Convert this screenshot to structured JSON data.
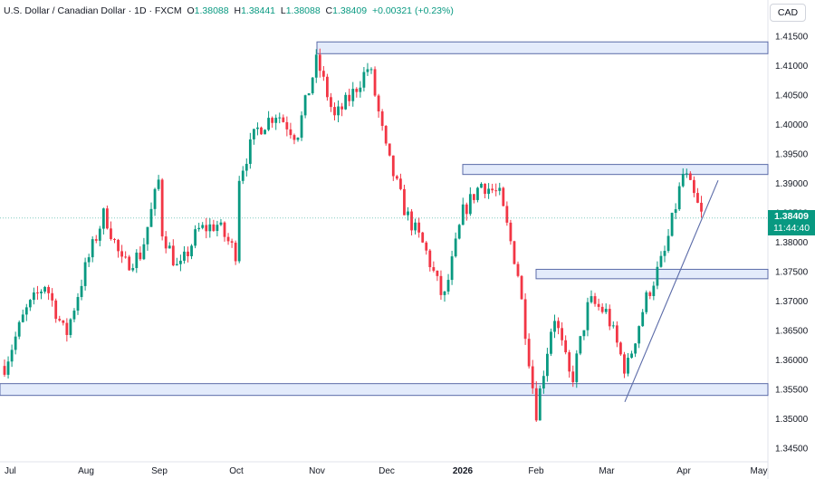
{
  "header": {
    "symbol": "U.S. Dollar / Canadian Dollar · 1D · FXCM",
    "open_label": "O",
    "open": "1.38088",
    "high_label": "H",
    "high": "1.38441",
    "low_label": "L",
    "low": "1.38088",
    "close_label": "C",
    "close": "1.38409",
    "change": "+0.00321 (+0.23%)"
  },
  "currency": "CAD",
  "price_tag": {
    "price": "1.38409",
    "countdown": "11:44:40"
  },
  "colors": {
    "up": "#089981",
    "down": "#f23645",
    "zone_fill": "#e3ebfb",
    "zone_border": "#5b6ba8",
    "trendline": "#5b6ba8"
  },
  "chart_data": {
    "type": "candlestick",
    "y_ticks": [
      "1.41500",
      "1.41000",
      "1.40500",
      "1.40000",
      "1.39500",
      "1.39000",
      "1.38500",
      "1.38000",
      "1.37500",
      "1.37000",
      "1.36500",
      "1.36000",
      "1.35500",
      "1.35000",
      "1.34500"
    ],
    "x_ticks": [
      "Jul",
      "Aug",
      "Sep",
      "Oct",
      "Nov",
      "Dec",
      "2026",
      "Feb",
      "Mar",
      "Apr",
      "May"
    ],
    "ylim": [
      1.3435,
      1.4165
    ],
    "current_price": 1.38409,
    "zones": [
      {
        "from": "Nov",
        "to": "right-edge",
        "low": 1.412,
        "high": 1.414
      },
      {
        "from": "2026",
        "to": "right-edge",
        "low": 1.3915,
        "high": 1.3932
      },
      {
        "from": "Feb",
        "to": "right-edge",
        "low": 1.3738,
        "high": 1.3754
      },
      {
        "from": "left-edge",
        "to": "right-edge",
        "low": 1.354,
        "high": 1.356
      }
    ],
    "trendline": [
      {
        "x": "Mar",
        "y": 1.3529
      },
      {
        "x": "Apr",
        "y": 1.3905
      }
    ],
    "waypoints": [
      [
        "Jul",
        1.359
      ],
      [
        "Jul+1w",
        1.368
      ],
      [
        "Jul+2w",
        1.373
      ],
      [
        "Jul+3w",
        1.364
      ],
      [
        "Aug",
        1.376
      ],
      [
        "Aug+1w",
        1.385
      ],
      [
        "Aug+2w",
        1.376
      ],
      [
        "Aug+3w",
        1.378
      ],
      [
        "Aug+4w",
        1.391
      ],
      [
        "Sep",
        1.383
      ],
      [
        "Sep+1w",
        1.375
      ],
      [
        "Sep+2w",
        1.382
      ],
      [
        "Sep+3w",
        1.383
      ],
      [
        "Sep+4w",
        1.378
      ],
      [
        "Oct",
        1.39
      ],
      [
        "Oct+1w",
        1.399
      ],
      [
        "Oct+2w",
        1.402
      ],
      [
        "Oct+3w",
        1.398
      ],
      [
        "Nov",
        1.411
      ],
      [
        "Nov+1w",
        1.401
      ],
      [
        "Nov+2w",
        1.405
      ],
      [
        "Nov+3w",
        1.41
      ],
      [
        "Dec",
        1.395
      ],
      [
        "Dec+1w",
        1.385
      ],
      [
        "Dec+2w",
        1.379
      ],
      [
        "Dec+3w",
        1.37
      ],
      [
        "2026",
        1.385
      ],
      [
        "2026+1w",
        1.39
      ],
      [
        "2026+2w",
        1.388
      ],
      [
        "2026+3w",
        1.375
      ],
      [
        "Feb",
        1.351
      ],
      [
        "Feb+1w",
        1.368
      ],
      [
        "Feb+2w",
        1.356
      ],
      [
        "Feb+3w",
        1.37
      ],
      [
        "Mar",
        1.368
      ],
      [
        "Mar+1w",
        1.358
      ],
      [
        "Mar+2w",
        1.37
      ],
      [
        "Mar+3w",
        1.378
      ],
      [
        "Apr",
        1.392
      ],
      [
        "Apr+1w",
        1.3841
      ]
    ]
  }
}
